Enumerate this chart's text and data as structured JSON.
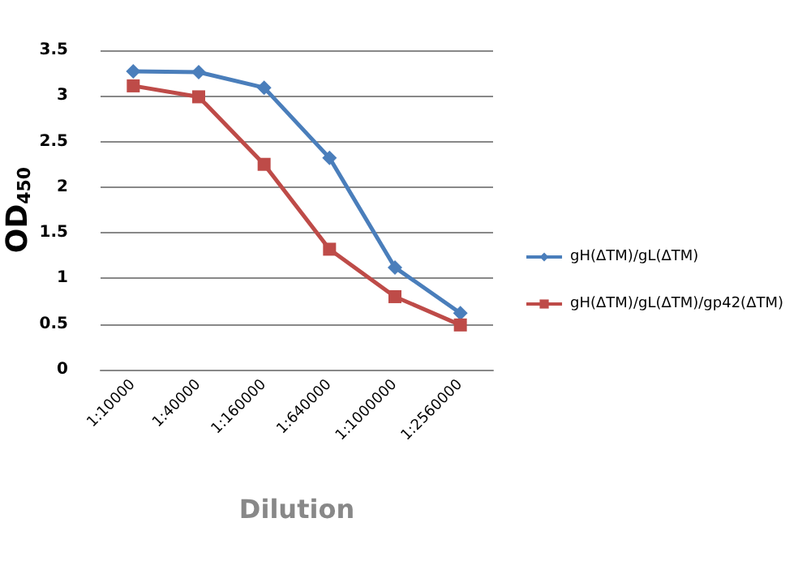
{
  "chart_data": {
    "type": "line",
    "xlabel": "Dilution",
    "ylabel": "OD$_{450}$",
    "categories": [
      "1:10000",
      "1:40000",
      "1:160000",
      "1:640000",
      "1:1000000",
      "1:2560000"
    ],
    "series": [
      {
        "name": "gH(ΔTM)/gL(ΔTM)",
        "color": "#4a7ebb",
        "marker": "diamond",
        "values": [
          3.27,
          3.26,
          3.09,
          2.32,
          1.12,
          0.62
        ]
      },
      {
        "name": "gH(ΔTM)/gL(ΔTM)/gp42(ΔTM)",
        "color": "#be4b48",
        "marker": "square",
        "values": [
          3.11,
          2.99,
          2.25,
          1.32,
          0.8,
          0.49
        ]
      }
    ],
    "ylim": [
      0,
      3.5
    ],
    "yticks": [
      0,
      0.5,
      1,
      1.5,
      2,
      2.5,
      3,
      3.5
    ],
    "grid": "y",
    "legend": "right"
  }
}
